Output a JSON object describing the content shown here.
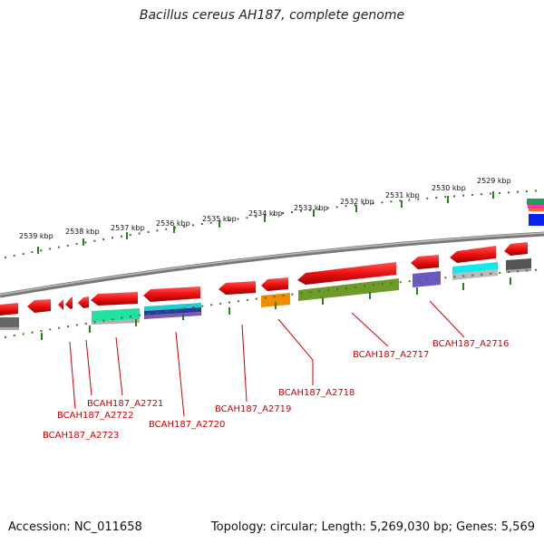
{
  "title": "Bacillus cereus AH187, complete genome",
  "footer": {
    "accession": "Accession: NC_011658",
    "summary": "Topology: circular; Length: 5,269,030 bp; Genes: 5,569"
  },
  "scale_labels": [
    "2539 kbp",
    "2538 kbp",
    "2537 kbp",
    "2536 kbp",
    "2535 kbp",
    "2534 kbp",
    "2533 kbp",
    "2532 kbp",
    "2531 kbp",
    "2530 kbp",
    "2529 kbp"
  ],
  "gene_labels": [
    "BCAH187_A2716",
    "BCAH187_A2717",
    "BCAH187_A2718",
    "BCAH187_A2719",
    "BCAH187_A2720",
    "BCAH187_A2721",
    "BCAH187_A2722",
    "BCAH187_A2723"
  ],
  "colors": {
    "gene_arrow": "#ee1111",
    "label": "#cc0000",
    "tick": "#2e7d1e",
    "backbone": "#888888"
  }
}
